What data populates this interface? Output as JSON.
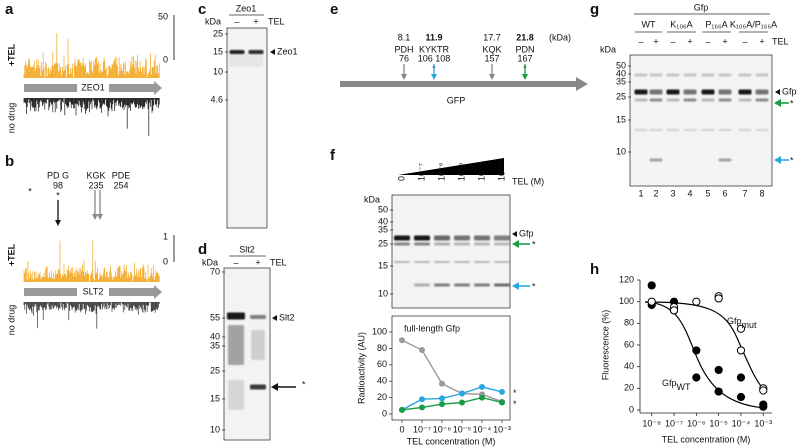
{
  "a": {
    "label": "a",
    "track_top": "+TEL",
    "track_bottom": "no drug",
    "scale": [
      "50",
      "0"
    ],
    "gene": "ZEO1"
  },
  "b": {
    "label": "b",
    "track_top": "+TEL",
    "track_bottom": "no drug",
    "scale": [
      "1",
      "0"
    ],
    "gene": "SLT2",
    "mark": "*",
    "sites": [
      {
        "motif": "PD G",
        "position": "98",
        "mark": "*"
      },
      {
        "motif": "KGK",
        "position": "235"
      },
      {
        "motif": "PDE",
        "position": "254"
      }
    ]
  },
  "c": {
    "label": "c",
    "header": "Zeo1",
    "kda": "kDa",
    "lanes": [
      "–",
      "+"
    ],
    "treatment": "TEL",
    "ladder": [
      "25",
      "15",
      "10",
      "4.6"
    ],
    "band": "Zeo1"
  },
  "d": {
    "label": "d",
    "header": "Slt2",
    "kda": "kDa",
    "lanes": [
      "–",
      "+"
    ],
    "treatment": "TEL",
    "ladder": [
      "70",
      "55",
      "40",
      "35",
      "25",
      "15",
      "10"
    ],
    "band": "Slt2",
    "fragment": "*"
  },
  "e": {
    "label": "e",
    "unit": "(kDa)",
    "protein": "GFP",
    "sites": [
      {
        "mass": "8.1",
        "motif": "PDH",
        "position": "76"
      },
      {
        "mass": "11.9",
        "motif": "KYKTR",
        "position": "106 108",
        "mark": "*"
      },
      {
        "mass": "17.7",
        "motif": "KQK",
        "position": "157"
      },
      {
        "mass": "21.8",
        "motif": "PDN",
        "position": "167",
        "mark": "*"
      }
    ]
  },
  "f": {
    "label": "f",
    "lanes": [
      "0",
      "10⁻⁷",
      "10⁻⁶",
      "10⁻⁵",
      "10⁻⁴",
      "10⁻³"
    ],
    "treatment": "TEL (M)",
    "kda": "kDa",
    "ladder": [
      "50",
      "40",
      "35",
      "25",
      "15",
      "10"
    ],
    "band": "Gfp",
    "fragments": [
      "*",
      "*"
    ],
    "chart": {
      "type": "line",
      "x_label": "TEL concentration (M)",
      "y_label": "Radioactivity (AU)",
      "categories": [
        "0",
        "10⁻⁷",
        "10⁻⁶",
        "10⁻⁵",
        "10⁻⁴",
        "10⁻³"
      ],
      "ylim": [
        0,
        100
      ],
      "yticks": [
        0,
        20,
        40,
        60,
        80,
        100
      ],
      "series": [
        {
          "name": "full-length Gfp",
          "color": "#999999",
          "values": [
            90,
            78,
            37,
            25,
            24,
            15
          ]
        },
        {
          "name": "*",
          "color": "#29a8df",
          "values": [
            5,
            18,
            19,
            25,
            33,
            27
          ]
        },
        {
          "name": "*",
          "color": "#1a9c46",
          "values": [
            5,
            8,
            12,
            14,
            20,
            14
          ]
        }
      ]
    }
  },
  "g": {
    "label": "g",
    "header": "Gfp",
    "genotypes": [
      "WT",
      "K₁₀₆A",
      "P₁₆₆A",
      "K₁₀₆A/P₁₆₆A"
    ],
    "lanes": [
      "–",
      "+",
      "–",
      "+",
      "–",
      "+",
      "–",
      "+"
    ],
    "treatment": "TEL",
    "kda": "kDa",
    "ladder": [
      "50",
      "40",
      "35",
      "25",
      "15",
      "10"
    ],
    "lane_numbers": [
      "1",
      "2",
      "3",
      "4",
      "5",
      "6",
      "7",
      "8"
    ],
    "band": "Gfp",
    "fragments": [
      "*",
      "*"
    ]
  },
  "h": {
    "label": "h",
    "chart": {
      "type": "scatter",
      "x_label": "TEL concentration (M)",
      "y_label": "Fluorescence (%)",
      "log_x": true,
      "xlim": [
        5e-09,
        0.002
      ],
      "xticks": [
        {
          "value": 1e-08,
          "label": "10⁻⁸"
        },
        {
          "value": 1e-07,
          "label": "10⁻⁷"
        },
        {
          "value": 1e-06,
          "label": "10⁻⁶"
        },
        {
          "value": 1e-05,
          "label": "10⁻⁵"
        },
        {
          "value": 0.0001,
          "label": "10⁻⁴"
        },
        {
          "value": 0.001,
          "label": "10⁻³"
        }
      ],
      "ylim": [
        0,
        120
      ],
      "yticks": [
        0,
        20,
        40,
        60,
        80,
        100,
        120
      ],
      "series": [
        {
          "label": {
            "base": "Gfp",
            "sub": "WT"
          },
          "color": "#000000",
          "fill": "#000000",
          "x": [
            1e-08,
            1e-08,
            1e-07,
            1e-07,
            1e-06,
            1e-06,
            1e-05,
            1e-05,
            0.0001,
            0.0001,
            0.001,
            0.001
          ],
          "values": [
            115,
            97,
            100,
            92,
            55,
            30,
            37,
            17,
            12,
            30,
            3,
            5
          ]
        },
        {
          "label": {
            "base": "Gfp",
            "sub": "mut"
          },
          "color": "#000000",
          "fill": "#ffffff",
          "x": [
            1e-08,
            1e-07,
            1e-07,
            1e-06,
            1e-05,
            1e-05,
            0.0001,
            0.0001,
            0.001,
            0.001
          ],
          "values": [
            100,
            95,
            92,
            100,
            105,
            103,
            75,
            55,
            20,
            18
          ]
        }
      ]
    }
  }
}
